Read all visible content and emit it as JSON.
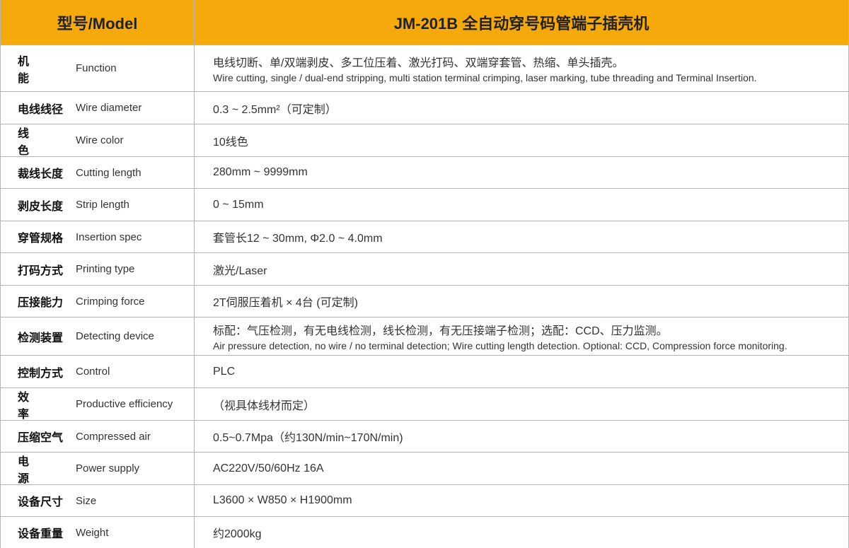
{
  "header": {
    "label": "型号/Model",
    "value": "JM-201B 全自动穿号码管端子插壳机"
  },
  "rows": [
    {
      "label": "机能",
      "label_en": "Function",
      "value": [
        "电线切断、单/双端剥皮、多工位压着、激光打码、双端穿套管、热缩、单头插壳。",
        "Wire cutting, single / dual-end stripping, multi station terminal crimping, laser marking, tube threading and Terminal Insertion."
      ]
    },
    {
      "label": "电线线径",
      "label_en": "Wire diameter",
      "value": [
        "0.3 ~ 2.5mm²（可定制）"
      ]
    },
    {
      "label": "线色",
      "label_en": "Wire color",
      "value": [
        "10线色"
      ]
    },
    {
      "label": "裁线长度",
      "label_en": "Cutting length",
      "value": [
        "280mm ~ 9999mm"
      ]
    },
    {
      "label": "剥皮长度",
      "label_en": "Strip length",
      "value": [
        "0 ~ 15mm"
      ]
    },
    {
      "label": "穿管规格",
      "label_en": "Insertion spec",
      "value": [
        "套管长12 ~ 30mm, Φ2.0 ~ 4.0mm"
      ]
    },
    {
      "label": "打码方式",
      "label_en": "Printing type",
      "value": [
        "激光/Laser"
      ]
    },
    {
      "label": "压接能力",
      "label_en": "Crimping force",
      "value": [
        "2T伺服压着机 × 4台 (可定制)"
      ]
    },
    {
      "label": "检测装置",
      "label_en": "Detecting device",
      "value": [
        "标配：气压检测，有无电线检测，线长检测，有无压接端子检测；选配：CCD、压力监测。",
        "Air pressure detection, no wire / no terminal detection; Wire cutting length detection. Optional: CCD, Compression force monitoring."
      ]
    },
    {
      "label": "控制方式",
      "label_en": "Control",
      "value": [
        "PLC"
      ]
    },
    {
      "label": "效率",
      "label_en": "Productive efficiency",
      "value": [
        "（视具体线材而定）"
      ]
    },
    {
      "label": "压缩空气",
      "label_en": "Compressed air",
      "value": [
        "0.5~0.7Mpa（约130N/min~170N/min)"
      ]
    },
    {
      "label": "电源",
      "label_en": "Power supply",
      "value": [
        "AC220V/50/60Hz 16A"
      ]
    },
    {
      "label": "设备尺寸",
      "label_en": "Size",
      "value": [
        "L3600 × W850 × H1900mm"
      ]
    },
    {
      "label": "设备重量",
      "label_en": "Weight",
      "value": [
        "约2000kg"
      ]
    }
  ]
}
